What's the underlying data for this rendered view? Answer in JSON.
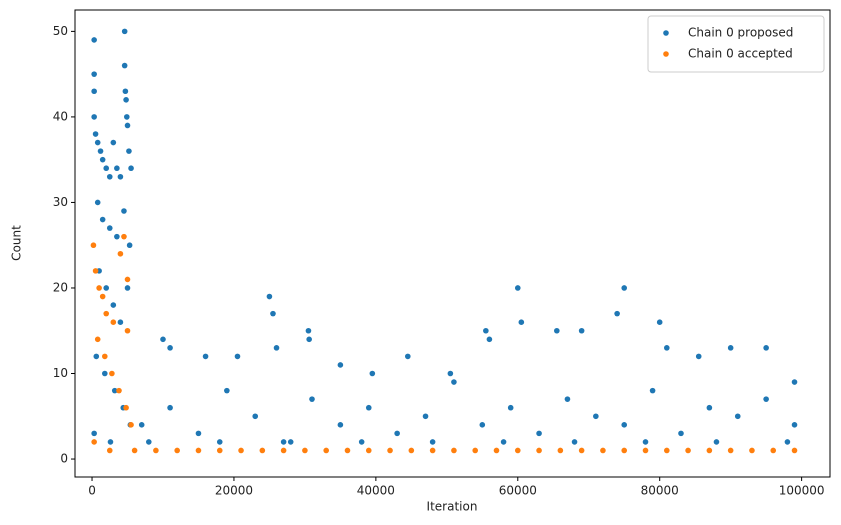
{
  "chart_data": {
    "type": "scatter",
    "x_label": "Iteration",
    "y_label": "Count",
    "xlim": [
      -2400,
      104000
    ],
    "ylim": [
      -2.1,
      52.5
    ],
    "xticks": [
      0,
      20000,
      40000,
      60000,
      80000,
      100000
    ],
    "yticks": [
      0,
      10,
      20,
      30,
      40,
      50
    ],
    "legend": "upper right",
    "series": [
      {
        "name": "Chain 0 proposed",
        "color": "#1f77b4",
        "x": [
          300,
          300,
          300,
          300,
          500,
          800,
          1200,
          1500,
          2000,
          2500,
          3000,
          3500,
          4000,
          4600,
          4600,
          4700,
          4800,
          4900,
          5000,
          5200,
          5500,
          800,
          1500,
          2500,
          3500,
          4500,
          5300,
          1000,
          2000,
          3000,
          4000,
          5000,
          600,
          1800,
          3200,
          4400,
          5400,
          300,
          2600,
          10000,
          11000,
          16000,
          20500,
          25000,
          25500,
          26000,
          30500,
          30600,
          35000,
          39500,
          44500,
          50500,
          55500,
          56000,
          60000,
          60500,
          65500,
          69000,
          74000,
          75000,
          80000,
          81000,
          85500,
          90000,
          95000,
          99000,
          7000,
          11000,
          15000,
          19000,
          23000,
          27000,
          31000,
          35000,
          39000,
          43000,
          47000,
          51000,
          55000,
          59000,
          63000,
          67000,
          71000,
          75000,
          79000,
          83000,
          87000,
          91000,
          95000,
          99000,
          8000,
          18000,
          28000,
          38000,
          48000,
          58000,
          68000,
          78000,
          88000,
          98000
        ],
        "values": [
          49,
          45,
          43,
          40,
          38,
          37,
          36,
          35,
          34,
          33,
          37,
          34,
          33,
          50,
          46,
          43,
          42,
          40,
          39,
          36,
          34,
          30,
          28,
          27,
          26,
          29,
          25,
          22,
          20,
          18,
          16,
          20,
          12,
          10,
          8,
          6,
          4,
          3,
          2,
          14,
          13,
          12,
          12,
          19,
          17,
          13,
          15,
          14,
          11,
          10,
          12,
          10,
          15,
          14,
          20,
          16,
          15,
          15,
          17,
          20,
          16,
          13,
          12,
          13,
          13,
          9,
          4,
          6,
          3,
          8,
          5,
          2,
          7,
          4,
          6,
          3,
          5,
          9,
          4,
          6,
          3,
          7,
          5,
          4,
          8,
          3,
          6,
          5,
          7,
          4,
          2,
          2,
          2,
          2,
          2,
          2,
          2,
          2,
          2,
          2
        ]
      },
      {
        "name": "Chain 0 accepted",
        "color": "#ff7f0e",
        "x": [
          200,
          500,
          1000,
          1500,
          2000,
          3000,
          4000,
          4500,
          5000,
          800,
          1800,
          2800,
          3800,
          4800,
          5500,
          300,
          2500,
          5000,
          6000,
          9000,
          12000,
          15000,
          18000,
          21000,
          24000,
          27000,
          30000,
          33000,
          36000,
          39000,
          42000,
          45000,
          48000,
          51000,
          54000,
          57000,
          60000,
          63000,
          66000,
          69000,
          72000,
          75000,
          78000,
          81000,
          84000,
          87000,
          90000,
          93000,
          96000,
          99000
        ],
        "values": [
          25,
          22,
          20,
          19,
          17,
          16,
          24,
          26,
          21,
          14,
          12,
          10,
          8,
          6,
          4,
          2,
          1,
          15,
          1,
          1,
          1,
          1,
          1,
          1,
          1,
          1,
          1,
          1,
          1,
          1,
          1,
          1,
          1,
          1,
          1,
          1,
          1,
          1,
          1,
          1,
          1,
          1,
          1,
          1,
          1,
          1,
          1,
          1,
          1,
          1
        ]
      }
    ]
  }
}
